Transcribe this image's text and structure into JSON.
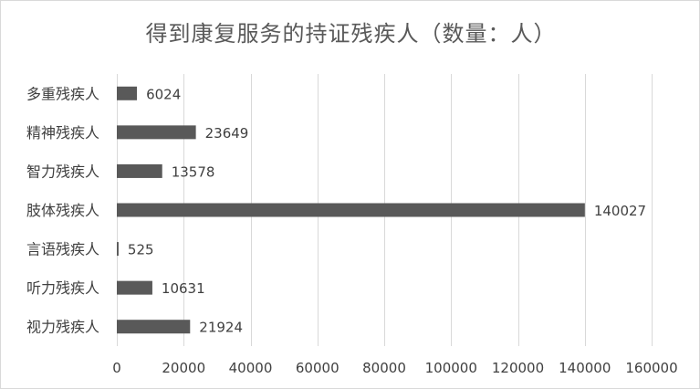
{
  "chart_data": {
    "type": "bar",
    "orientation": "horizontal",
    "title": "得到康复服务的持证残疾人（数量：人）",
    "categories": [
      "多重残疾人",
      "精神残疾人",
      "智力残疾人",
      "肢体残疾人",
      "言语残疾人",
      "听力残疾人",
      "视力残疾人"
    ],
    "values": [
      6024,
      23649,
      13578,
      140027,
      525,
      10631,
      21924
    ],
    "xlim": [
      0,
      160000
    ],
    "xticks": [
      0,
      20000,
      40000,
      60000,
      80000,
      100000,
      120000,
      140000,
      160000
    ],
    "grid": true,
    "data_labels": true,
    "bar_color": "#595959",
    "grid_color": "#d9d9d9"
  }
}
